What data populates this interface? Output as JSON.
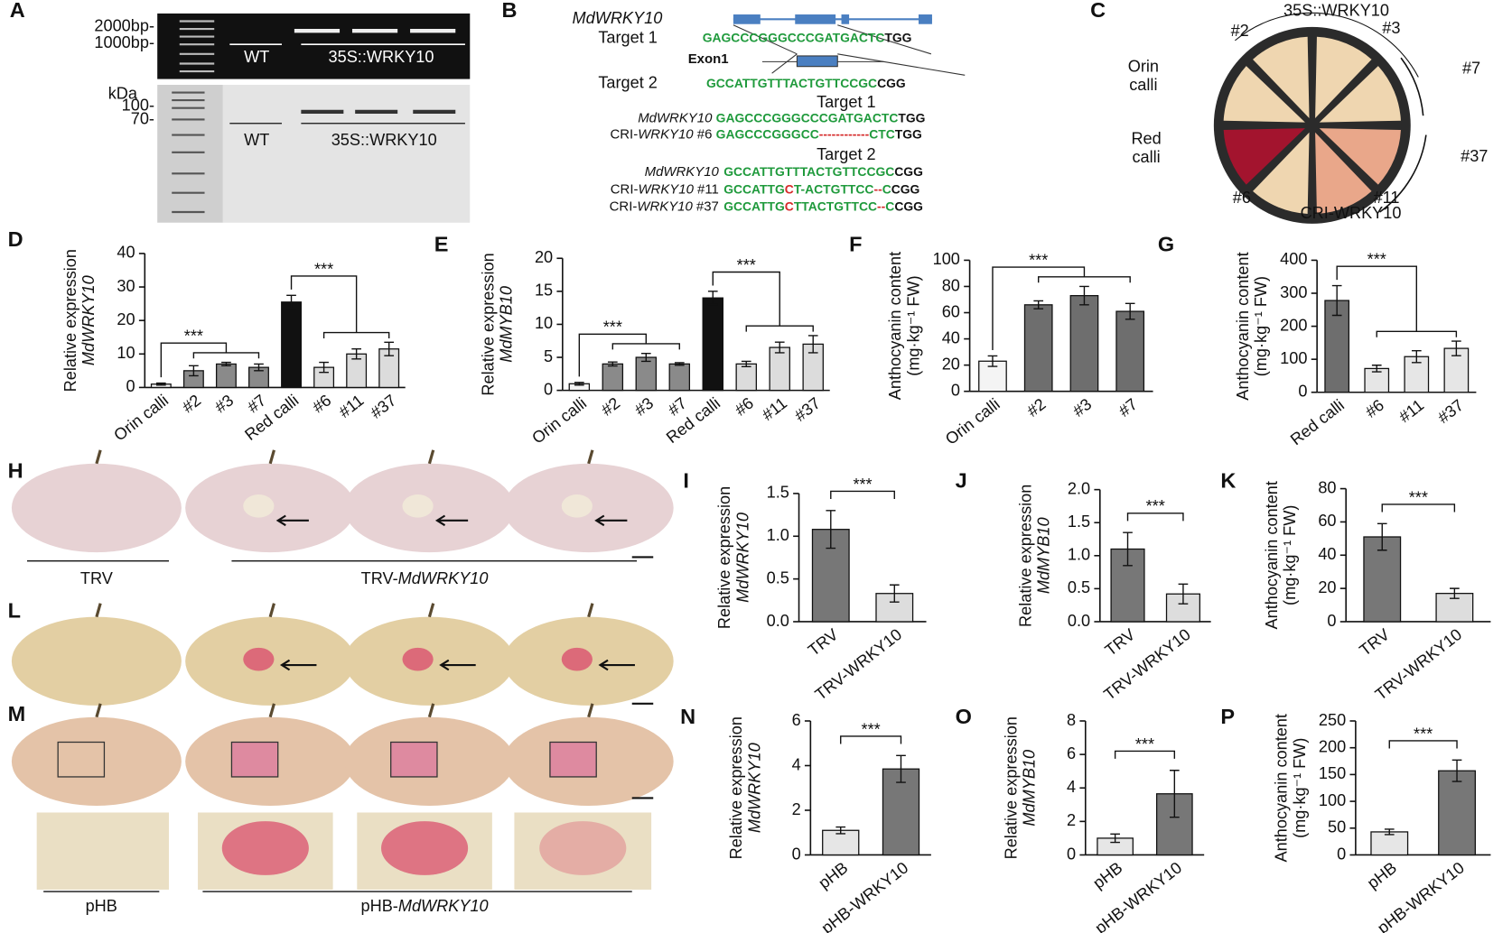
{
  "panel_labels": [
    "A",
    "B",
    "C",
    "D",
    "E",
    "F",
    "G",
    "H",
    "I",
    "J",
    "K",
    "L",
    "M",
    "N",
    "O",
    "P"
  ],
  "panel_a": {
    "markers_dna": [
      "2000bp-",
      "1000bp-"
    ],
    "lanes_top": [
      "WT",
      "35S::WRKY10"
    ],
    "protein_unit": "kDa",
    "markers_protein": [
      "100-",
      "70-"
    ],
    "lanes_bottom": [
      "WT",
      "35S::WRKY10"
    ]
  },
  "panel_b": {
    "gene": "MdWRKY10",
    "exon": "Exon1",
    "targets": [
      {
        "name": "Target 1",
        "sequence": [
          {
            "text": "GAGCCCGGGCCCGATGACTC",
            "color": "#1f9a3c"
          },
          {
            "text": "TGG",
            "color": "#111111"
          }
        ]
      },
      {
        "name": "Target 2",
        "sequence": [
          {
            "text": "GCCATTGTTTACTGTTCCGC",
            "color": "#1f9a3c"
          },
          {
            "text": "CGG",
            "color": "#111111"
          }
        ]
      }
    ],
    "alignments": [
      {
        "title": "Target 1",
        "rows": [
          {
            "name": [
              {
                "text": "MdWRKY10",
                "italic": true
              }
            ],
            "sequence": [
              {
                "text": "GAGCCCGGGCCCGATGACTC",
                "color": "#1f9a3c"
              },
              {
                "text": "TGG",
                "color": "#111111"
              }
            ]
          },
          {
            "name": [
              {
                "text": "CRI-",
                "italic": false
              },
              {
                "text": "WRKY10",
                "italic": true
              },
              {
                "text": " #6",
                "italic": false
              }
            ],
            "sequence": [
              {
                "text": "GAGCCCGGGCC",
                "color": "#1f9a3c"
              },
              {
                "text": "------------",
                "color": "#d62a2a"
              },
              {
                "text": "CTC",
                "color": "#1f9a3c"
              },
              {
                "text": "TGG",
                "color": "#111111"
              }
            ]
          }
        ]
      },
      {
        "title": "Target 2",
        "rows": [
          {
            "name": [
              {
                "text": "MdWRKY10",
                "italic": true
              }
            ],
            "sequence": [
              {
                "text": "GCCATTGTTTACTGTTCCGC",
                "color": "#1f9a3c"
              },
              {
                "text": "CGG",
                "color": "#111111"
              }
            ]
          },
          {
            "name": [
              {
                "text": "CRI-",
                "italic": false
              },
              {
                "text": "WRKY10",
                "italic": true
              },
              {
                "text": " #11",
                "italic": false
              }
            ],
            "sequence": [
              {
                "text": "GCCATTG",
                "color": "#1f9a3c"
              },
              {
                "text": "C",
                "color": "#d62a2a"
              },
              {
                "text": "T-ACTGTTCC",
                "color": "#1f9a3c"
              },
              {
                "text": "--",
                "color": "#d62a2a"
              },
              {
                "text": "C",
                "color": "#1f9a3c"
              },
              {
                "text": "CGG",
                "color": "#111111"
              }
            ]
          },
          {
            "name": [
              {
                "text": "CRI-",
                "italic": false
              },
              {
                "text": "WRKY10",
                "italic": true
              },
              {
                "text": " #37",
                "italic": false
              }
            ],
            "sequence": [
              {
                "text": "GCCATTG",
                "color": "#1f9a3c"
              },
              {
                "text": "C",
                "color": "#d62a2a"
              },
              {
                "text": "TTACTGTTCC",
                "color": "#1f9a3c"
              },
              {
                "text": "--",
                "color": "#d62a2a"
              },
              {
                "text": "C",
                "color": "#1f9a3c"
              },
              {
                "text": "CGG",
                "color": "#111111"
              }
            ]
          }
        ]
      }
    ]
  },
  "panel_c": {
    "top": "35S::WRKY10",
    "bottom": "CRI-WRKY10",
    "lines": [
      "#2",
      "#3",
      "#7",
      "#37",
      "#11",
      "#6"
    ],
    "orin": [
      "Orin",
      "calli"
    ],
    "red": [
      "Red",
      "calli"
    ]
  },
  "panel_h": {
    "control": "TRV",
    "treatment": [
      {
        "text": "TRV-",
        "italic": false
      },
      {
        "text": "MdWRKY10",
        "italic": true
      }
    ]
  },
  "panel_m": {
    "control": "pHB",
    "treatment": [
      {
        "text": "pHB-",
        "italic": false
      },
      {
        "text": "MdWRKY10",
        "italic": true
      }
    ]
  },
  "chart_data": [
    {
      "type": "bar",
      "ylabel": [
        "Relative expression",
        "MdWRKY10"
      ],
      "categories": [
        "Orin calli",
        "#2",
        "#3",
        "#7",
        "Red calli",
        "#6",
        "#11",
        "#37"
      ],
      "values": [
        1,
        5,
        7,
        6,
        25.5,
        6,
        10,
        11.5
      ],
      "errors": [
        0.3,
        1.5,
        0.5,
        1,
        2,
        1.5,
        1.5,
        2
      ],
      "colors": [
        "#f4f4f4",
        "#8a8a8a",
        "#8a8a8a",
        "#8a8a8a",
        "#111111",
        "#dcdcdc",
        "#dcdcdc",
        "#dcdcdc"
      ],
      "ylim": [
        0,
        40
      ],
      "yticks": [
        0,
        10,
        20,
        30,
        40
      ],
      "significance": [
        {
          "label": "***",
          "ref": "Orin calli",
          "vs": [
            "#2",
            "#3",
            "#7"
          ]
        },
        {
          "label": "***",
          "ref": "Red calli",
          "vs": [
            "#6",
            "#11",
            "#37"
          ]
        }
      ]
    },
    {
      "type": "bar",
      "ylabel": [
        "Relative expression",
        "MdMYB10"
      ],
      "categories": [
        "Orin calli",
        "#2",
        "#3",
        "#7",
        "Red calli",
        "#6",
        "#11",
        "#37"
      ],
      "values": [
        1,
        4,
        5,
        4,
        14,
        4,
        6.5,
        7
      ],
      "errors": [
        0.2,
        0.3,
        0.6,
        0.2,
        1,
        0.4,
        0.8,
        1.3
      ],
      "colors": [
        "#f4f4f4",
        "#8a8a8a",
        "#8a8a8a",
        "#8a8a8a",
        "#111111",
        "#dcdcdc",
        "#dcdcdc",
        "#dcdcdc"
      ],
      "ylim": [
        0,
        20
      ],
      "yticks": [
        0,
        5,
        10,
        15,
        20
      ],
      "significance": [
        {
          "label": "***",
          "ref": "Orin calli",
          "vs": [
            "#2",
            "#3",
            "#7"
          ]
        },
        {
          "label": "***",
          "ref": "Red calli",
          "vs": [
            "#6",
            "#11",
            "#37"
          ]
        }
      ]
    },
    {
      "type": "bar",
      "ylabel": [
        "Anthocyanin content",
        "(mg·kg⁻¹ FW)"
      ],
      "categories": [
        "Orin calli",
        "#2",
        "#3",
        "#7"
      ],
      "values": [
        23,
        66,
        73,
        61
      ],
      "errors": [
        4,
        3,
        7,
        6
      ],
      "colors": [
        "#f4f4f4",
        "#6e6e6e",
        "#6e6e6e",
        "#6e6e6e"
      ],
      "ylim": [
        0,
        100
      ],
      "yticks": [
        0,
        20,
        40,
        60,
        80,
        100
      ],
      "significance": [
        {
          "label": "***",
          "ref": "Orin calli",
          "vs": [
            "#2",
            "#3",
            "#7"
          ]
        }
      ]
    },
    {
      "type": "bar",
      "ylabel": [
        "Anthocyanin content",
        "(mg·kg⁻¹ FW)"
      ],
      "categories": [
        "Red calli",
        "#6",
        "#11",
        "#37"
      ],
      "values": [
        278,
        72,
        108,
        133
      ],
      "errors": [
        45,
        10,
        18,
        22
      ],
      "colors": [
        "#6e6e6e",
        "#e6e6e6",
        "#e6e6e6",
        "#e6e6e6"
      ],
      "ylim": [
        0,
        400
      ],
      "yticks": [
        0,
        100,
        200,
        300,
        400
      ],
      "significance": [
        {
          "label": "***",
          "ref": "Red calli",
          "vs": [
            "#6",
            "#11",
            "#37"
          ]
        }
      ]
    },
    {
      "type": "bar",
      "ylabel": [
        "Relative expression",
        "MdWRKY10"
      ],
      "categories": [
        "TRV",
        "TRV-WRKY10"
      ],
      "values": [
        1.08,
        0.33
      ],
      "errors": [
        0.22,
        0.1
      ],
      "colors": [
        "#777777",
        "#dddddd"
      ],
      "ylim": [
        0,
        1.5
      ],
      "yticks": [
        {
          "value": 0,
          "label": "0.0"
        },
        0.5,
        {
          "value": 1,
          "label": "1.0"
        },
        1.5
      ],
      "significance": [
        {
          "label": "***",
          "ref": "TRV",
          "vs": [
            "TRV-WRKY10"
          ]
        }
      ]
    },
    {
      "type": "bar",
      "ylabel": [
        "Relative expression",
        "MdMYB10"
      ],
      "categories": [
        "TRV",
        "TRV-WRKY10"
      ],
      "values": [
        1.1,
        0.42
      ],
      "errors": [
        0.25,
        0.15
      ],
      "colors": [
        "#777777",
        "#dddddd"
      ],
      "ylim": [
        0,
        2
      ],
      "yticks": [
        {
          "value": 0,
          "label": "0.0"
        },
        0.5,
        {
          "value": 1,
          "label": "1.0"
        },
        1.5,
        {
          "value": 2,
          "label": "2.0"
        }
      ],
      "significance": [
        {
          "label": "***",
          "ref": "TRV",
          "vs": [
            "TRV-WRKY10"
          ]
        }
      ]
    },
    {
      "type": "bar",
      "ylabel": [
        "Anthocyanin content",
        "(mg·kg⁻¹ FW)"
      ],
      "categories": [
        "TRV",
        "TRV-WRKY10"
      ],
      "values": [
        51,
        17
      ],
      "errors": [
        8,
        3
      ],
      "colors": [
        "#777777",
        "#dddddd"
      ],
      "ylim": [
        0,
        80
      ],
      "yticks": [
        0,
        20,
        40,
        60,
        80
      ],
      "significance": [
        {
          "label": "***",
          "ref": "TRV",
          "vs": [
            "TRV-WRKY10"
          ]
        }
      ]
    },
    {
      "type": "bar",
      "ylabel": [
        "Relative expression",
        "MdWRKY10"
      ],
      "categories": [
        "pHB",
        "pHB-WRKY10"
      ],
      "values": [
        1.1,
        3.85
      ],
      "errors": [
        0.15,
        0.6
      ],
      "colors": [
        "#e6e6e6",
        "#777777"
      ],
      "ylim": [
        0,
        6
      ],
      "yticks": [
        0,
        2,
        4,
        6
      ],
      "significance": [
        {
          "label": "***",
          "ref": "pHB",
          "vs": [
            "pHB-WRKY10"
          ]
        }
      ]
    },
    {
      "type": "bar",
      "ylabel": [
        "Relative expression",
        "MdMYB10"
      ],
      "categories": [
        "pHB",
        "pHB-WRKY10"
      ],
      "values": [
        1,
        3.65
      ],
      "errors": [
        0.25,
        1.4
      ],
      "colors": [
        "#e6e6e6",
        "#777777"
      ],
      "ylim": [
        0,
        8
      ],
      "yticks": [
        0,
        2,
        4,
        6,
        8
      ],
      "significance": [
        {
          "label": "***",
          "ref": "pHB",
          "vs": [
            "pHB-WRKY10"
          ]
        }
      ]
    },
    {
      "type": "bar",
      "ylabel": [
        "Anthocyanin content",
        "(mg·kg⁻¹ FW)"
      ],
      "categories": [
        "pHB",
        "pHB-WRKY10"
      ],
      "values": [
        43,
        157
      ],
      "errors": [
        5,
        20
      ],
      "colors": [
        "#e6e6e6",
        "#777777"
      ],
      "ylim": [
        0,
        250
      ],
      "yticks": [
        0,
        50,
        100,
        150,
        200,
        250
      ],
      "significance": [
        {
          "label": "***",
          "ref": "pHB",
          "vs": [
            "pHB-WRKY10"
          ]
        }
      ]
    }
  ]
}
